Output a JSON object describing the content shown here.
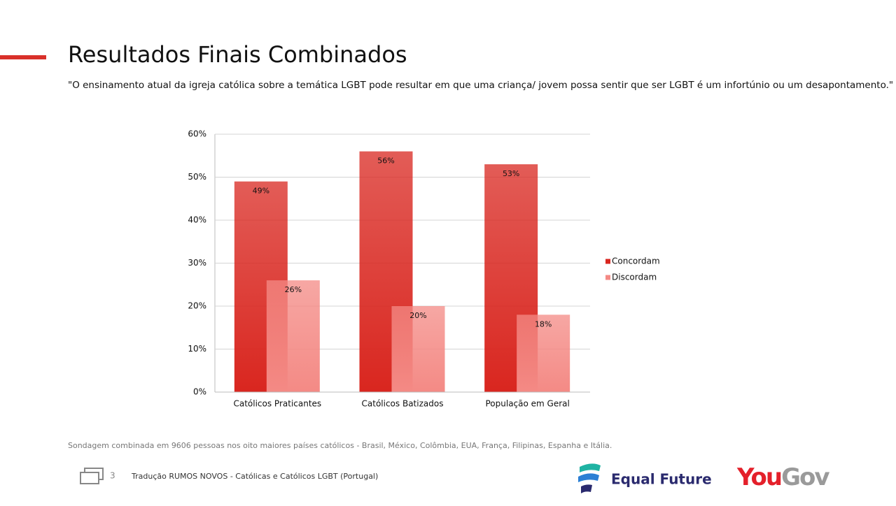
{
  "chart_data": {
    "type": "bar",
    "title": "Resultados Finais Combinados",
    "subtitle": "\"O ensinamento atual da igreja católica sobre a temática LGBT pode resultar em que uma criança/ jovem possa sentir que ser LGBT é um infortúnio ou um desapontamento.\"",
    "categories": [
      "Católicos Praticantes",
      "Católicos Batizados",
      "População em Geral"
    ],
    "series": [
      {
        "name": "Concordam",
        "color": "#d9261f",
        "values": [
          49,
          56,
          53
        ],
        "value_labels": [
          "49%",
          "56%",
          "53%"
        ]
      },
      {
        "name": "Discordam",
        "color": "#f48a85",
        "values": [
          26,
          20,
          18
        ],
        "value_labels": [
          "26%",
          "20%",
          "18%"
        ]
      }
    ],
    "ylim": [
      0,
      60
    ],
    "yticks": [
      {
        "value": 0,
        "label": "0%"
      },
      {
        "value": 10,
        "label": "10%"
      },
      {
        "value": 20,
        "label": "20%"
      },
      {
        "value": 30,
        "label": "30%"
      },
      {
        "value": 40,
        "label": "40%"
      },
      {
        "value": 50,
        "label": "50%"
      },
      {
        "value": 60,
        "label": "60%"
      }
    ],
    "grid": true,
    "legend": "right"
  },
  "footnote": "Sondagem combinada em 9606 pessoas nos oito maiores países católicos - Brasil, México, Colômbia, EUA, França, Filipinas, Espanha e Itália.",
  "page_number": "3",
  "footer": "Tradução RUMOS NOVOS - Católicas e Católicos LGBT (Portugal)",
  "logo_equal_future": "Equal Future",
  "logo_you": "You",
  "logo_gov": "Gov"
}
